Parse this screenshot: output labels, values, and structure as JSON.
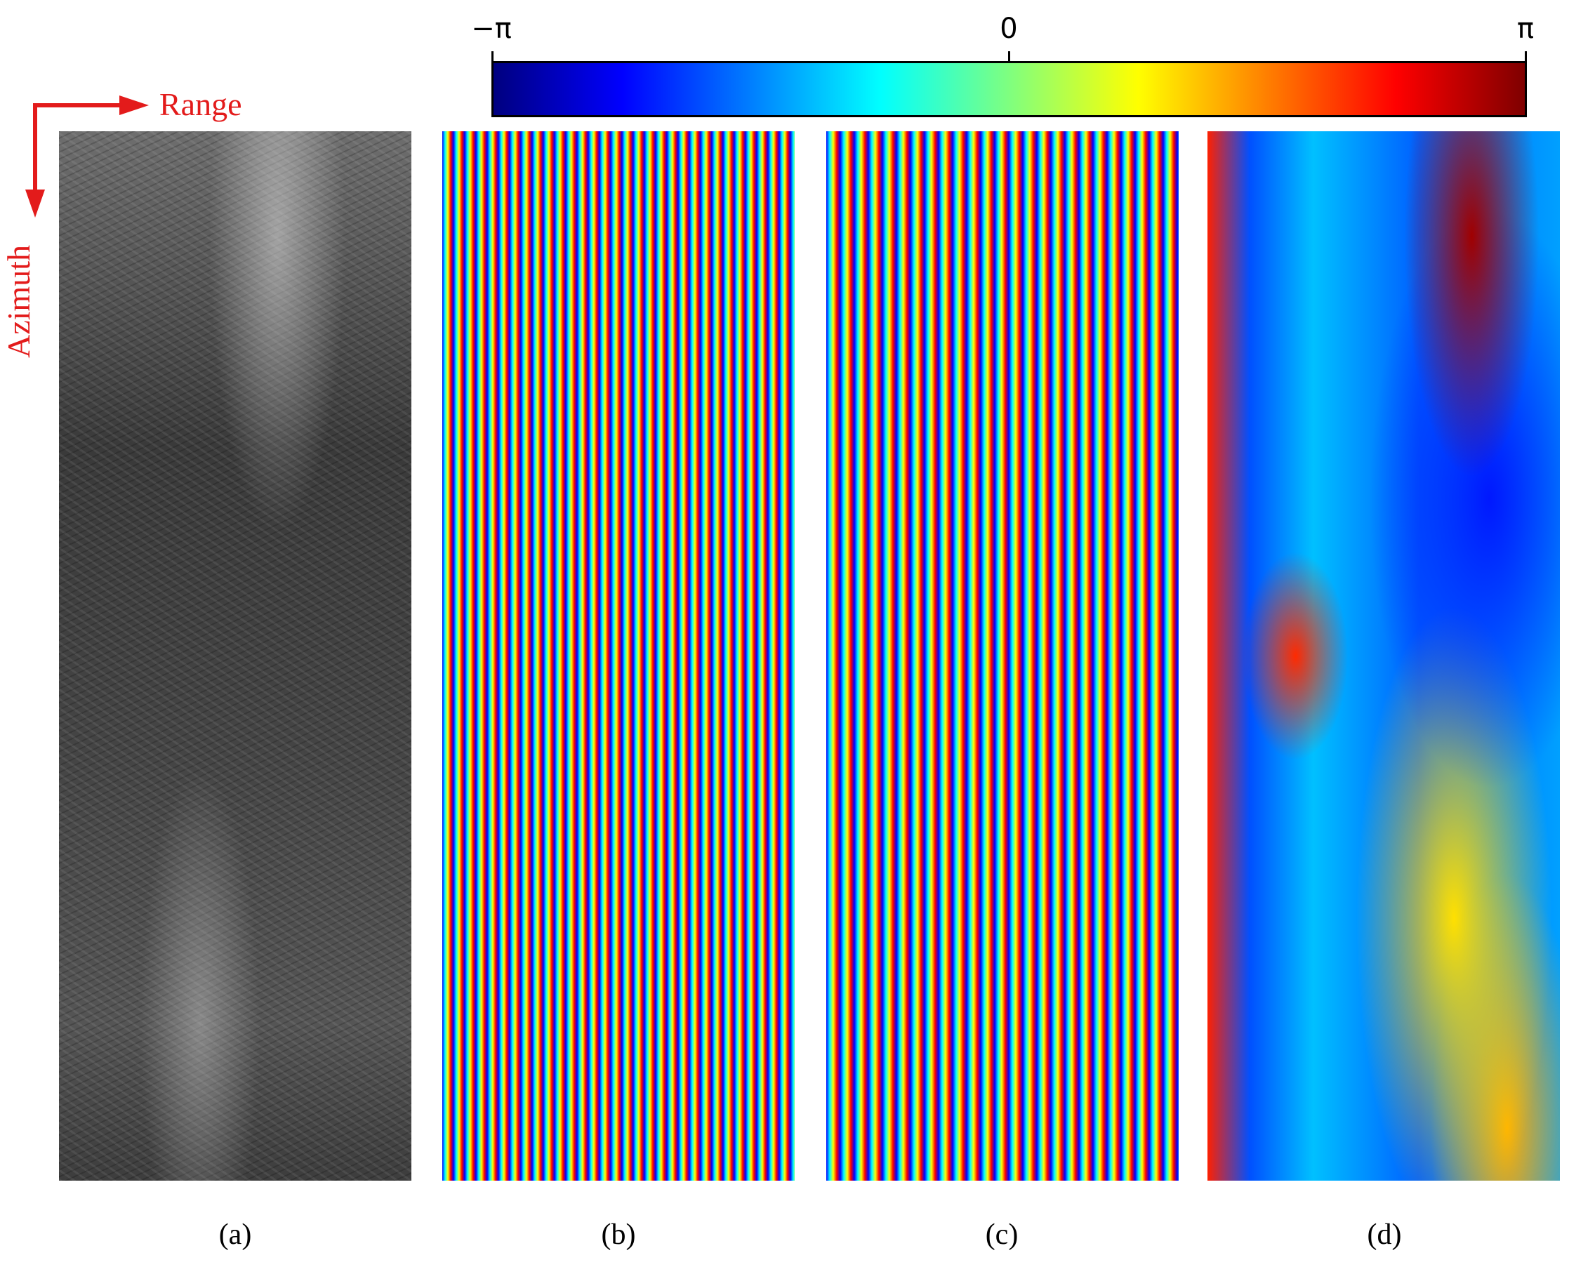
{
  "colorbar": {
    "min_label": "−π",
    "mid_label": "0",
    "max_label": "π",
    "colormap": "jet"
  },
  "axes": {
    "range_label": "Range",
    "azimuth_label": "Azimuth",
    "arrow_color": "#e31b1b"
  },
  "panels": [
    {
      "caption": "(a)"
    },
    {
      "caption": "(b)"
    },
    {
      "caption": "(c)"
    },
    {
      "caption": "(d)"
    }
  ]
}
